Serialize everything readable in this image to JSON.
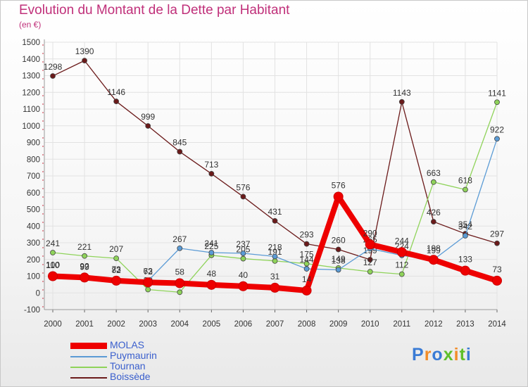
{
  "header": {
    "title": "Evolution du Montant de la Dette par Habitant",
    "unit": "(en €)"
  },
  "logo": {
    "text": "Proxiti",
    "colors": [
      "#3a7bd5",
      "#f28c28",
      "#3a7bd5",
      "#5fbf2a",
      "#f28c28",
      "#5fbf2a",
      "#3a7bd5"
    ]
  },
  "chart_data": {
    "type": "line",
    "x": [
      "2000",
      "2001",
      "2002",
      "2003",
      "2004",
      "2005",
      "2006",
      "2007",
      "2008",
      "2009",
      "2010",
      "2011",
      "2012",
      "2013",
      "2014"
    ],
    "ylim": [
      -100,
      1500
    ],
    "yticks": [
      -100,
      0,
      100,
      200,
      300,
      400,
      500,
      600,
      700,
      800,
      900,
      1000,
      1100,
      1200,
      1300,
      1400,
      1500
    ],
    "grid": true,
    "legend_position": "bottom-left",
    "series": [
      {
        "name": "MOLAS",
        "color": "#ee0000",
        "values": [
          100,
          92,
          73,
          63,
          58,
          48,
          40,
          31,
          14,
          576,
          290,
          244,
          198,
          133,
          73
        ]
      },
      {
        "name": "Puymaurin",
        "color": "#5b9bd5",
        "values": [
          110,
          99,
          82,
          72,
          267,
          241,
          237,
          218,
          144,
          138,
          265,
          224,
          199,
          342,
          922
        ]
      },
      {
        "name": "Tournan",
        "color": "#8fd35a",
        "values": [
          241,
          221,
          207,
          20,
          4,
          225,
          205,
          191,
          175,
          149,
          127,
          112,
          663,
          618,
          1141
        ]
      },
      {
        "name": "Boissède",
        "color": "#6b1a1a",
        "values": [
          1298,
          1390,
          1146,
          999,
          845,
          713,
          576,
          431,
          293,
          260,
          199,
          1143,
          426,
          354,
          297
        ]
      }
    ]
  }
}
